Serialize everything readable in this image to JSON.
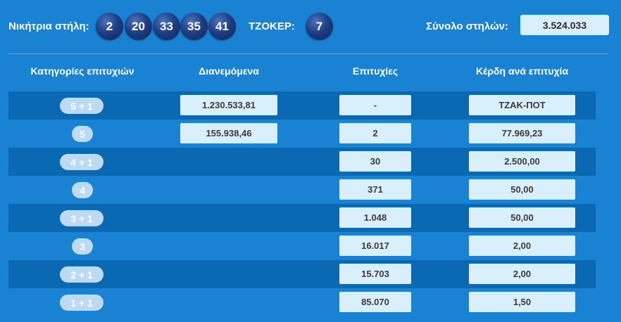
{
  "header": {
    "winning_label": "Νικήτρια στήλη:",
    "numbers": [
      "2",
      "20",
      "33",
      "35",
      "41"
    ],
    "joker_label": "ΤΖΟΚΕΡ:",
    "joker": "7",
    "total_label": "Σύνολο στηλών:",
    "total_value": "3.524.033"
  },
  "table": {
    "columns": [
      "Κατηγορίες επιτυχιών",
      "Διανεμόμενα",
      "Επιτυχίες",
      "Κέρδη ανά επιτυχία"
    ],
    "rows": [
      {
        "category": "5 + 1",
        "distributed": "1.230.533,81",
        "winners": "-",
        "prize": "ΤΖΑΚ-ΠΟΤ"
      },
      {
        "category": "5",
        "distributed": "155.938,46",
        "winners": "2",
        "prize": "77.969,23"
      },
      {
        "category": "4 + 1",
        "distributed": "",
        "winners": "30",
        "prize": "2.500,00"
      },
      {
        "category": "4",
        "distributed": "",
        "winners": "371",
        "prize": "50,00"
      },
      {
        "category": "3 + 1",
        "distributed": "",
        "winners": "1.048",
        "prize": "50,00"
      },
      {
        "category": "3",
        "distributed": "",
        "winners": "16.017",
        "prize": "2,00"
      },
      {
        "category": "2 + 1",
        "distributed": "",
        "winners": "15.703",
        "prize": "2,00"
      },
      {
        "category": "1 + 1",
        "distributed": "",
        "winners": "85.070",
        "prize": "1,50"
      }
    ]
  },
  "colors": {
    "background": "#1a82d2",
    "row_dark": "#0b68b2",
    "cell_bg": "#d9effb",
    "ball": "#1e3f86",
    "pill": "#bcdaf3"
  }
}
